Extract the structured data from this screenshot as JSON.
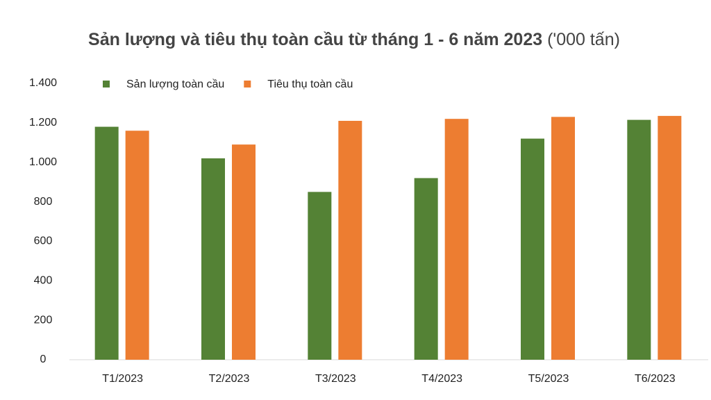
{
  "chart_data": {
    "type": "bar",
    "title": "Sản lượng và tiêu thụ toàn cầu từ tháng 1 - 6 năm 2023",
    "unit": "('000 tấn)",
    "categories": [
      "T1/2023",
      "T2/2023",
      "T3/2023",
      "T4/2023",
      "T5/2023",
      "T6/2023"
    ],
    "series": [
      {
        "name": "Sản lượng toàn cầu",
        "color": "#548235",
        "values": [
          1180,
          1020,
          850,
          920,
          1120,
          1215
        ]
      },
      {
        "name": "Tiêu thụ toàn cầu",
        "color": "#ed7d31",
        "values": [
          1160,
          1090,
          1210,
          1220,
          1230,
          1235
        ]
      }
    ],
    "ylim": [
      0,
      1400
    ],
    "yticks": [
      0,
      200,
      400,
      600,
      800,
      {
        "value": 1000,
        "label": "1.000"
      },
      {
        "value": 1200,
        "label": "1.200"
      },
      {
        "value": 1400,
        "label": "1.400"
      }
    ],
    "grid": false,
    "legend": "top-left"
  }
}
